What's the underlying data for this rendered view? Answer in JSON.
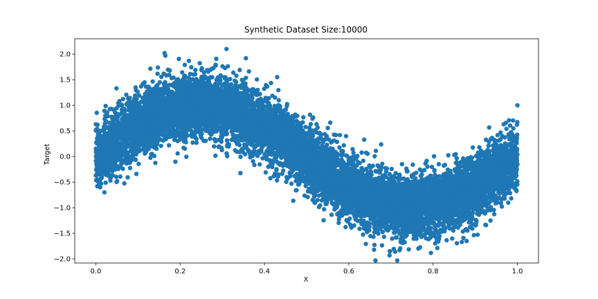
{
  "chart_data": {
    "type": "scatter",
    "title": "Synthetic Dataset Size:10000",
    "xlabel": "X",
    "ylabel": "Target",
    "xlim": [
      -0.05,
      1.05
    ],
    "ylim": [
      -2.08,
      2.3
    ],
    "xticks": [
      0.0,
      0.2,
      0.4,
      0.6,
      0.8,
      1.0
    ],
    "xtick_labels": [
      "0.0",
      "0.2",
      "0.4",
      "0.6",
      "0.8",
      "1.0"
    ],
    "yticks": [
      -2.0,
      -1.5,
      -1.0,
      -0.5,
      0.0,
      0.5,
      1.0,
      1.5,
      2.0
    ],
    "ytick_labels": [
      "−2.0",
      "−1.5",
      "−1.0",
      "−0.5",
      "0.0",
      "0.5",
      "1.0",
      "1.5",
      "2.0"
    ],
    "grid": false,
    "color": "#1f77b4",
    "n_points": 10000,
    "generator": {
      "function": "sin(2*pi*x)",
      "noise_sd": 0.3,
      "x_range": [
        0.0,
        1.0
      ]
    },
    "outliers": [
      {
        "x": 0.31,
        "y": 2.1
      },
      {
        "x": 0.163,
        "y": 2.02
      },
      {
        "x": 0.165,
        "y": 1.97
      },
      {
        "x": 0.66,
        "y": -1.82
      },
      {
        "x": 0.697,
        "y": -1.85
      },
      {
        "x": 0.71,
        "y": -1.86
      },
      {
        "x": 0.0,
        "y": 0.63
      },
      {
        "x": 1.0,
        "y": 1.0
      }
    ]
  }
}
